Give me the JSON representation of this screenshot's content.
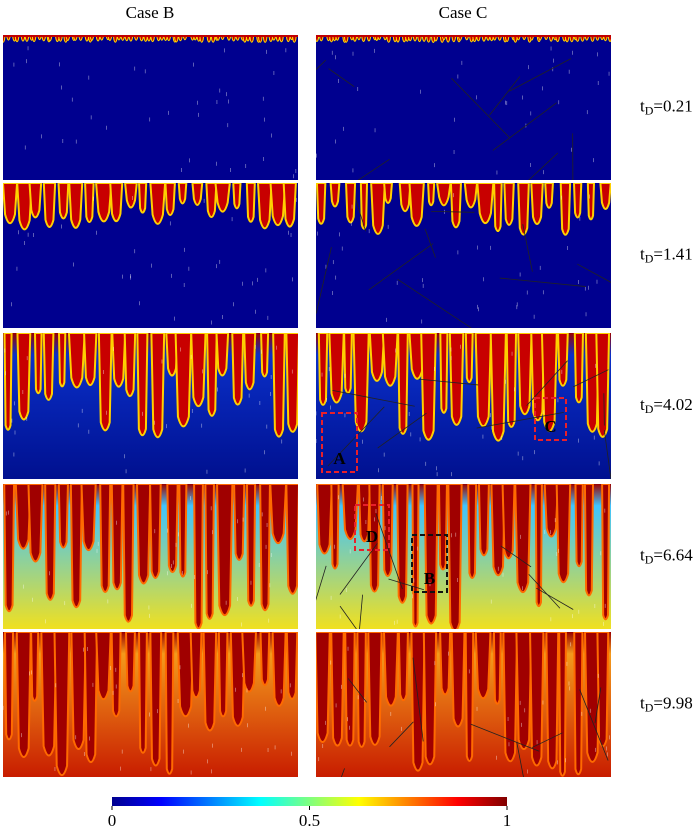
{
  "figure": {
    "columns": [
      "Case B",
      "Case C"
    ],
    "rows": [
      {
        "base": "t",
        "sub": "D",
        "rest": "=0.21"
      },
      {
        "base": "t",
        "sub": "D",
        "rest": "=1.41"
      },
      {
        "base": "t",
        "sub": "D",
        "rest": "=4.02"
      },
      {
        "base": "t",
        "sub": "D",
        "rest": "=6.64"
      },
      {
        "base": "t",
        "sub": "D",
        "rest": "=9.98"
      }
    ],
    "annotations": [
      {
        "label": "A",
        "color": "#e8202a"
      },
      {
        "label": "C",
        "color": "#e8202a"
      },
      {
        "label": "D",
        "color": "#e8202a"
      },
      {
        "label": "B",
        "color": "#111111"
      }
    ],
    "colorbar": {
      "lim": [
        0,
        1
      ],
      "ticks": [
        0,
        0.5,
        1
      ]
    }
  }
}
